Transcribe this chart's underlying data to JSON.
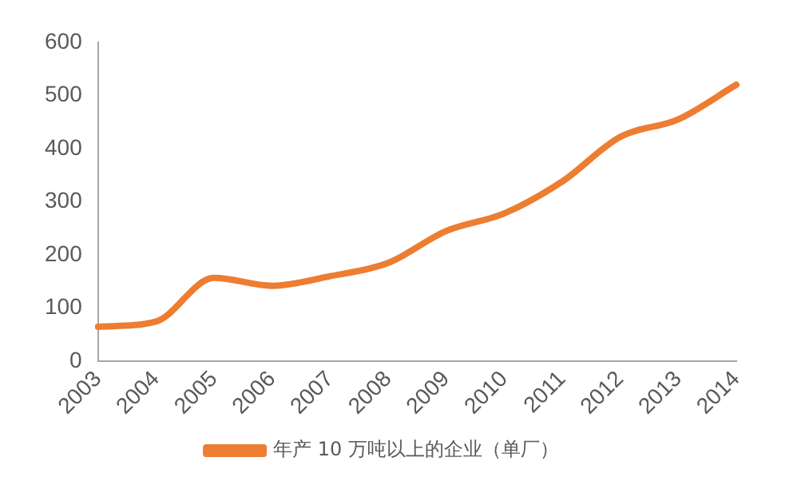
{
  "chart_data": {
    "type": "line",
    "categories": [
      "2003",
      "2004",
      "2005",
      "2006",
      "2007",
      "2008",
      "2009",
      "2010",
      "2011",
      "2012",
      "2013",
      "2014"
    ],
    "series": [
      {
        "name": "年产 10 万吨以上的企业（单厂）",
        "color": "#ed7d31",
        "values": [
          65,
          75,
          157,
          142,
          160,
          185,
          245,
          278,
          338,
          422,
          455,
          520
        ]
      }
    ],
    "ylim": [
      0,
      600
    ],
    "yticks": [
      0,
      100,
      200,
      300,
      400,
      500,
      600
    ],
    "grid": false,
    "legend": "bottom",
    "marker": "none",
    "line_style": "solid"
  }
}
